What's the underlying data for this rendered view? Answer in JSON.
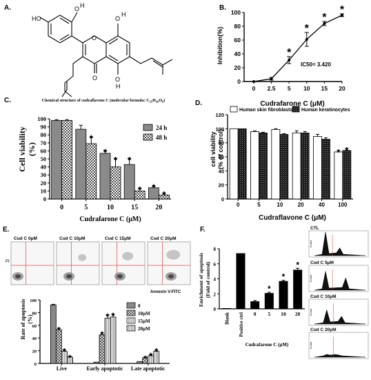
{
  "panel_labels": {
    "A": "A.",
    "B": "B.",
    "C": "C.",
    "D": "D.",
    "E": "E.",
    "F": "F."
  },
  "panel_a": {
    "caption": "Chemical structure of cudraflavone C (molecular formula: C25H26O6)",
    "caption_main": "Chemical structure of cudraflavone C (molecular formula: C",
    "formula_c_sub": "25",
    "formula_h": "H",
    "formula_h_sub": "26",
    "formula_o": "O",
    "formula_o_sub": "6",
    "formula_end": ")",
    "atoms": {
      "ho_left": "HO",
      "o_top1": "O",
      "h_top1": "H",
      "o_top2": "O",
      "h_top2": "H",
      "o_ring": "O",
      "o_carbonyl": "O",
      "o_bottom": "O",
      "h_bottom": "H"
    }
  },
  "ic50_label": "IC50= 3.420",
  "chart_data": [
    {
      "panel": "B",
      "type": "line",
      "xlabel": "Cudrafarone C (μM)",
      "ylabel": "Inhibition(%)",
      "x_ticks": [
        "0",
        "2.5",
        "5",
        "10",
        "15",
        "20"
      ],
      "ylim": [
        0,
        100
      ],
      "y_ticks": [
        0,
        20,
        40,
        60,
        80,
        100
      ],
      "values": [
        0,
        4,
        31,
        61,
        84,
        96
      ],
      "errors": [
        0,
        2,
        5,
        10,
        3,
        2
      ],
      "significant": [
        false,
        false,
        true,
        true,
        true,
        true
      ],
      "significance_mark": "*"
    },
    {
      "panel": "C",
      "type": "bar",
      "xlabel": "Cudrafarone C (μM)",
      "ylabel_line1": "Cell viability",
      "ylabel_line2": "(%)",
      "categories": [
        "0",
        "5",
        "10",
        "15",
        "20"
      ],
      "ylim": [
        0,
        100
      ],
      "y_ticks": [
        0,
        10,
        20,
        30,
        40,
        50,
        60,
        70,
        80,
        90,
        100
      ],
      "legend": "right",
      "series": [
        {
          "name": "24 h",
          "values": [
            98,
            87,
            57,
            43,
            14
          ],
          "errors": [
            1,
            5,
            3,
            7,
            2
          ],
          "significant": [
            false,
            false,
            true,
            true,
            true
          ],
          "color": "#8a8a8a"
        },
        {
          "name": "48 h",
          "values": [
            98,
            69,
            40,
            10,
            5
          ],
          "errors": [
            1,
            8,
            10,
            3,
            2
          ],
          "significant": [
            false,
            true,
            true,
            true,
            true
          ],
          "color": "#e6e6e6",
          "pattern": "checker"
        }
      ]
    },
    {
      "panel": "D",
      "type": "bar",
      "xlabel": "Cudraflavone C (μM)",
      "ylabel_line1": "cell viability",
      "ylabel_line2": "(% of control)",
      "categories": [
        "0",
        "5",
        "10",
        "20",
        "40",
        "100"
      ],
      "ylim": [
        0,
        120
      ],
      "y_ticks": [
        0,
        20,
        40,
        60,
        80,
        100,
        120
      ],
      "legend": "top",
      "series": [
        {
          "name": "Human skin fibroblasts",
          "values": [
            100,
            96,
            99,
            94,
            89,
            67
          ],
          "errors": [
            0,
            1,
            1,
            3,
            3,
            2
          ],
          "significant": [
            false,
            false,
            false,
            false,
            false,
            true
          ],
          "color": "#ffffff"
        },
        {
          "name": "Human keratinocytes",
          "values": [
            100,
            94,
            92,
            94,
            85,
            69
          ],
          "errors": [
            0,
            1,
            1,
            2,
            2,
            3
          ],
          "significant": [
            false,
            false,
            false,
            false,
            false,
            true
          ],
          "color": "#2a2a2a",
          "pattern": "dots"
        }
      ]
    },
    {
      "panel": "E",
      "type": "bar",
      "ylabel_line1": "Rate of apoptosis",
      "ylabel_line2": "(%)",
      "categories": [
        "Live",
        "Early apoptotic",
        "Late apoptotic"
      ],
      "ylim": [
        0,
        100
      ],
      "y_ticks": [
        0,
        20,
        40,
        60,
        80,
        100
      ],
      "legend": "right",
      "series": [
        {
          "name": "0",
          "values": [
            92,
            2,
            3
          ],
          "errors": [
            1,
            0,
            0
          ],
          "significant": [
            false,
            false,
            false
          ],
          "color": "#8a8a8a"
        },
        {
          "name": "10μM",
          "values": [
            53,
            45,
            9
          ],
          "errors": [
            2,
            3,
            1
          ],
          "significant": [
            true,
            true,
            true
          ],
          "color": "#ffffff",
          "pattern": "cross"
        },
        {
          "name": "15μM",
          "values": [
            19,
            71,
            12
          ],
          "errors": [
            2,
            5,
            2
          ],
          "significant": [
            true,
            true,
            true
          ],
          "color": "#ffffff",
          "pattern": "vlines"
        },
        {
          "name": "20μM",
          "values": [
            10,
            73,
            19
          ],
          "errors": [
            1,
            4,
            2
          ],
          "significant": [
            true,
            true,
            true
          ],
          "color": "#ffffff",
          "pattern": "vlines-dense"
        }
      ]
    },
    {
      "panel": "F",
      "type": "bar",
      "ylabel_line1": "Enrichment of apoptosis",
      "ylabel_line2": "(Fold of control)",
      "xlabel": "Cudrafarone C (μM)",
      "categories": [
        "Blank",
        "Positive ctrl",
        "0",
        "5",
        "10",
        "20"
      ],
      "ylim": [
        0,
        8
      ],
      "y_ticks": [
        0,
        2,
        4,
        6,
        8
      ],
      "values": [
        0,
        7.4,
        1.0,
        2.1,
        3.7,
        5.2
      ],
      "errors": [
        0,
        0,
        0.1,
        0.1,
        0.1,
        0.2
      ],
      "significant": [
        false,
        false,
        false,
        true,
        true,
        true
      ],
      "color": "#000000"
    }
  ],
  "flow_cytometry": {
    "panels": [
      "Cud C  0μM",
      "Cud C  10μM",
      "Cud C  15μM",
      "Cud C  20μM"
    ],
    "xlabel": "Annexin V-FITC",
    "ylabel": "PI"
  },
  "cell_cycle": {
    "panels": [
      "CTL",
      "Cud C 5μM",
      "Cud C 10μM",
      "Cud C 20μM"
    ],
    "ylabel": "Count"
  },
  "colors": {
    "axis": "#000000",
    "grid_red": "#d23030",
    "flow_blue": "#3a5ea8"
  }
}
